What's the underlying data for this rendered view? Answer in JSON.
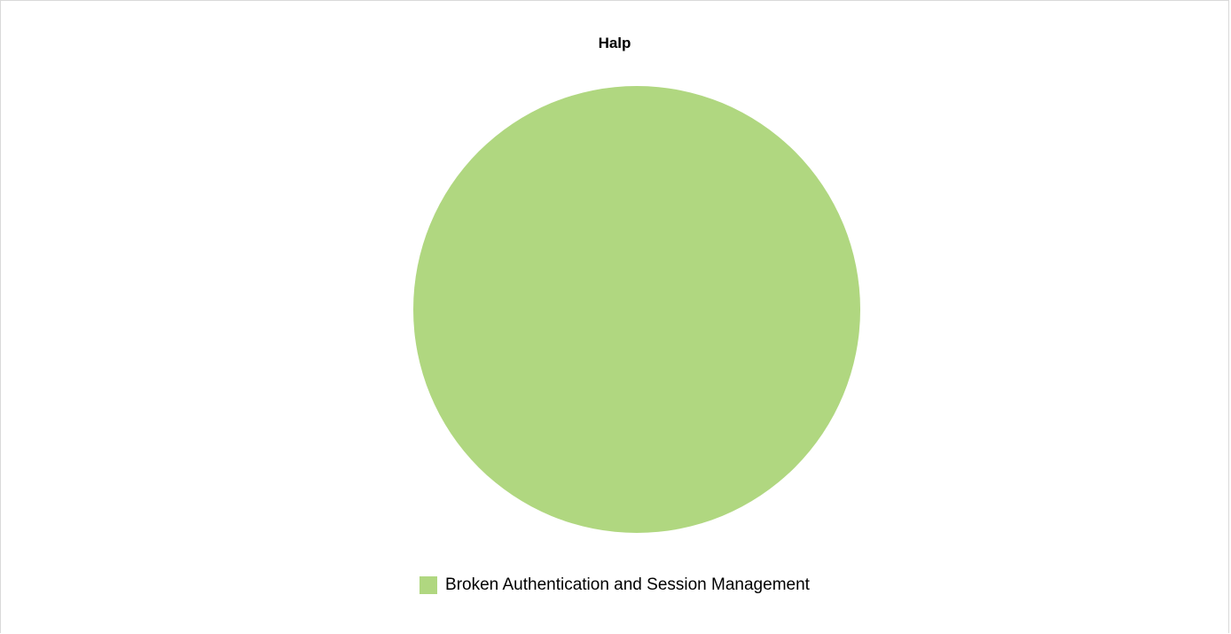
{
  "chart_data": {
    "type": "pie",
    "title": "Halp",
    "slices": [
      {
        "label": "Broken Authentication and Session Management",
        "value": 1,
        "color": "#b0d780"
      }
    ],
    "legend_position": "bottom"
  }
}
